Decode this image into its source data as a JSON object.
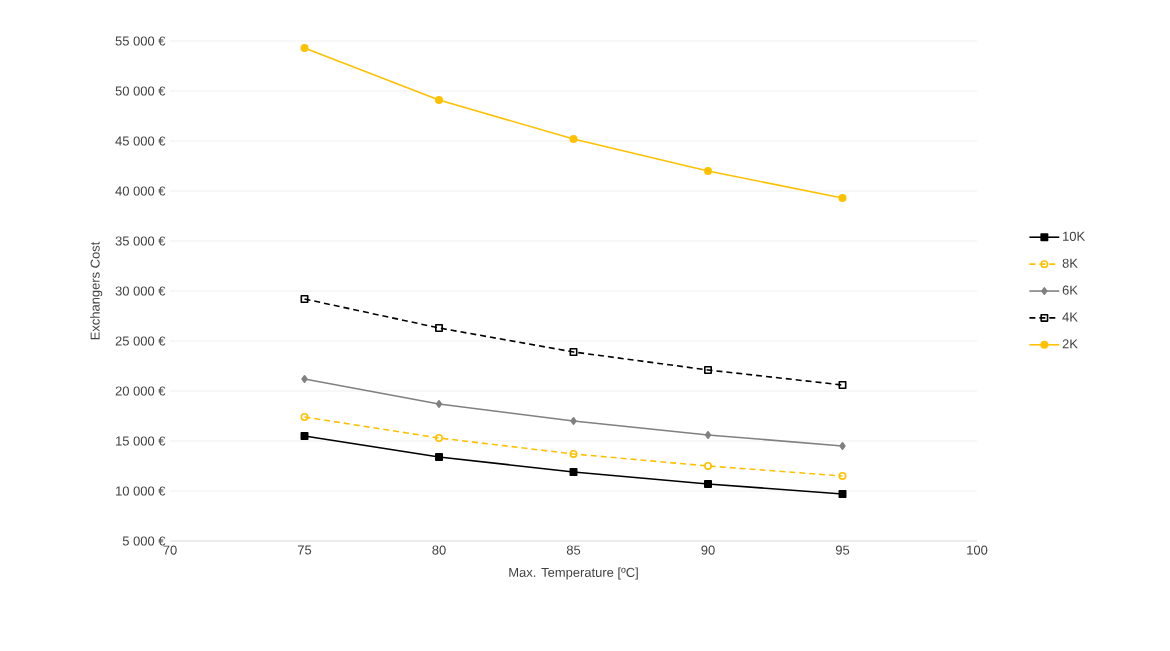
{
  "chart_data": {
    "type": "line",
    "xlabel": "Max. Temperature [ºC]",
    "ylabel": "Exchangers Cost",
    "x": [
      75,
      80,
      85,
      90,
      95
    ],
    "series": [
      {
        "name": "10K",
        "color": "#000000",
        "marker": "square",
        "line_style": "solid",
        "values": [
          15500,
          13400,
          11900,
          10700,
          9700
        ]
      },
      {
        "name": "8K",
        "color": "#ffc000",
        "marker": "circle",
        "line_style": "dashed",
        "values": [
          17400,
          15300,
          13700,
          12500,
          11500
        ]
      },
      {
        "name": "6K",
        "color": "#808080",
        "marker": "diamond",
        "line_style": "solid",
        "values": [
          21200,
          18700,
          17000,
          15600,
          14500
        ]
      },
      {
        "name": "4K",
        "color": "#000000",
        "marker": "square",
        "line_style": "dashed",
        "values": [
          29200,
          26300,
          23900,
          22100,
          20600
        ]
      },
      {
        "name": "2K",
        "color": "#ffc000",
        "marker": "circle",
        "line_style": "solid",
        "values": [
          54300,
          49100,
          45200,
          42000,
          39300
        ]
      }
    ],
    "xlim": [
      70,
      100
    ],
    "xticks": [
      70,
      75,
      80,
      85,
      90,
      95,
      100
    ],
    "ylim": [
      5000,
      55000
    ],
    "yticks": [
      {
        "value": 5000,
        "label": "5 000 €"
      },
      {
        "value": 10000,
        "label": "10 000 €"
      },
      {
        "value": 15000,
        "label": "15 000 €"
      },
      {
        "value": 20000,
        "label": "20 000 €"
      },
      {
        "value": 25000,
        "label": "25 000 €"
      },
      {
        "value": 30000,
        "label": "30 000 €"
      },
      {
        "value": 35000,
        "label": "35 000 €"
      },
      {
        "value": 40000,
        "label": "40 000 €"
      },
      {
        "value": 45000,
        "label": "45 000 €"
      },
      {
        "value": 50000,
        "label": "50 000 €"
      },
      {
        "value": 55000,
        "label": "55 000 €"
      }
    ],
    "grid": "y",
    "legend": "right"
  }
}
